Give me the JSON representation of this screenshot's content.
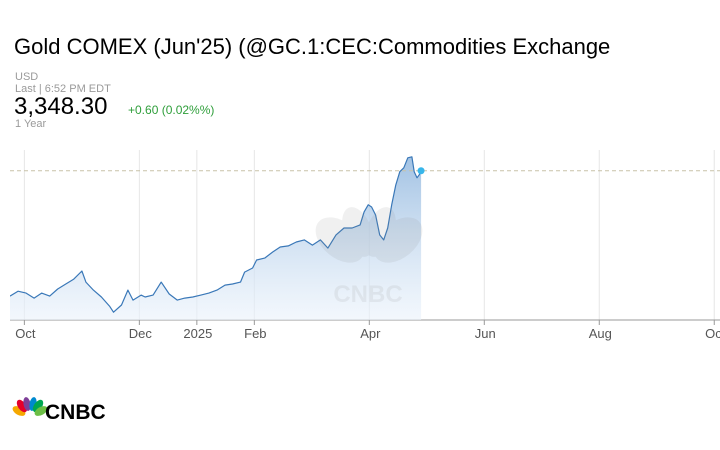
{
  "chart_data": {
    "type": "area",
    "title": "Gold COMEX (Jun'25) (@GC.1:CEC:Commodities Exchange",
    "currency": "USD",
    "last_updated": "Last | 6:52 PM EDT",
    "last_price": "3,348.30",
    "change": "+0.60 (0.02%%)",
    "period": "1 Year",
    "logo": "CNBC",
    "color": "#3a78b8",
    "x": [
      -0.25,
      -0.11,
      0.03,
      0.17,
      0.3,
      0.44,
      0.58,
      0.72,
      0.86,
      1.0,
      1.07,
      1.2,
      1.34,
      1.48,
      1.55,
      1.69,
      1.8,
      1.89,
      2.03,
      2.1,
      2.24,
      2.38,
      2.52,
      2.66,
      2.79,
      2.93,
      3.07,
      3.21,
      3.35,
      3.49,
      3.62,
      3.76,
      3.83,
      3.97,
      4.04,
      4.18,
      4.32,
      4.45,
      4.59,
      4.73,
      4.87,
      5.01,
      5.15,
      5.28,
      5.42,
      5.56,
      5.7,
      5.84,
      5.91,
      5.98,
      6.04,
      6.11,
      6.18,
      6.25,
      6.32,
      6.39,
      6.46,
      6.53,
      6.6,
      6.67,
      6.74,
      6.78,
      6.83,
      6.87,
      6.9
    ],
    "values": [
      2644,
      2672,
      2661,
      2633,
      2661,
      2644,
      2684,
      2712,
      2740,
      2785,
      2723,
      2678,
      2639,
      2588,
      2554,
      2594,
      2678,
      2622,
      2650,
      2639,
      2650,
      2723,
      2656,
      2622,
      2633,
      2639,
      2650,
      2661,
      2678,
      2706,
      2712,
      2723,
      2779,
      2802,
      2847,
      2858,
      2892,
      2920,
      2926,
      2948,
      2960,
      2931,
      2960,
      2914,
      2988,
      3027,
      3027,
      3044,
      3117,
      3157,
      3145,
      3100,
      2988,
      2960,
      3027,
      3157,
      3269,
      3343,
      3365,
      3421,
      3427,
      3343,
      3309,
      3326,
      3348.3
    ],
    "xlim": [
      -0.25,
      12.1
    ],
    "xticks": [
      {
        "value": 0,
        "label": "Oct"
      },
      {
        "value": 2,
        "label": "Dec"
      },
      {
        "value": 3,
        "label": "2025"
      },
      {
        "value": 4,
        "label": "Feb"
      },
      {
        "value": 6,
        "label": "Apr"
      },
      {
        "value": 8,
        "label": "Jun"
      },
      {
        "value": 10,
        "label": "Aug"
      },
      {
        "value": 12,
        "label": "Oct"
      }
    ],
    "ylim": [
      2510,
      3465
    ],
    "grid": true
  }
}
